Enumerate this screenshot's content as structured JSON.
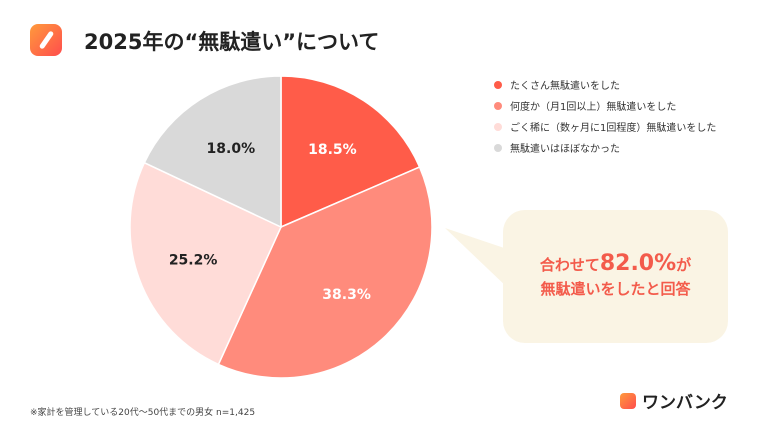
{
  "title": "2025年の“無駄遣い”について",
  "chart_data": {
    "type": "pie",
    "title": "2025年の“無駄遣い”について",
    "slices": [
      {
        "label": "たくさん無駄遣いをした",
        "value": 18.5,
        "display": "18.5%",
        "color": "#ff5c49"
      },
      {
        "label": "何度か（月1回以上）無駄遣いをした",
        "value": 38.3,
        "display": "38.3%",
        "color": "#ff8b7c"
      },
      {
        "label": "ごく稀に（数ヶ月に1回程度）無駄遣いをした",
        "value": 25.2,
        "display": "25.2%",
        "color": "#ffdcd8"
      },
      {
        "label": "無駄遣いはほぼなかった",
        "value": 18.0,
        "display": "18.0%",
        "color": "#d9d9d9"
      }
    ],
    "legend_position": "top-right"
  },
  "callout": {
    "line1_pre": "合わせて",
    "line1_value": "82.0%",
    "line1_post": "が",
    "line2": "無駄遣いをしたと回答"
  },
  "note": "※家計を管理している20代〜50代までの男女 n=1,425",
  "brand": "ワンバンク"
}
